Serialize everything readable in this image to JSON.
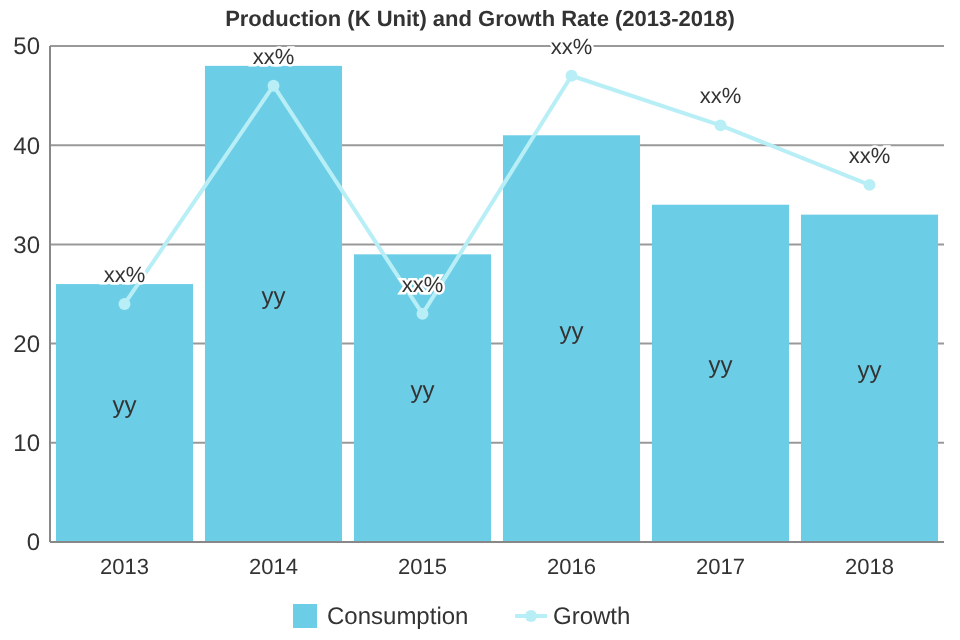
{
  "chart_data": {
    "type": "bar",
    "title": "Production (K Unit) and Growth Rate (2013-2018)",
    "categories": [
      "2013",
      "2014",
      "2015",
      "2016",
      "2017",
      "2018"
    ],
    "series": [
      {
        "name": "Consumption",
        "color": "#6ccde6",
        "values": [
          26,
          48,
          29,
          41,
          34,
          33
        ],
        "value_labels": [
          "yy",
          "yy",
          "yy",
          "yy",
          "yy",
          "yy"
        ]
      },
      {
        "name": "Growth",
        "type": "line",
        "color": "#b8eef6",
        "values": [
          24,
          46,
          23,
          47,
          42,
          36
        ],
        "value_labels": [
          "xx%",
          "xx%",
          "xx%",
          "xx%",
          "xx%",
          "xx%"
        ]
      }
    ],
    "ylim": [
      0,
      50
    ],
    "yticks": [
      0,
      10,
      20,
      30,
      40,
      50
    ],
    "grid": "y",
    "legend": "bottom",
    "marker": "circle"
  }
}
